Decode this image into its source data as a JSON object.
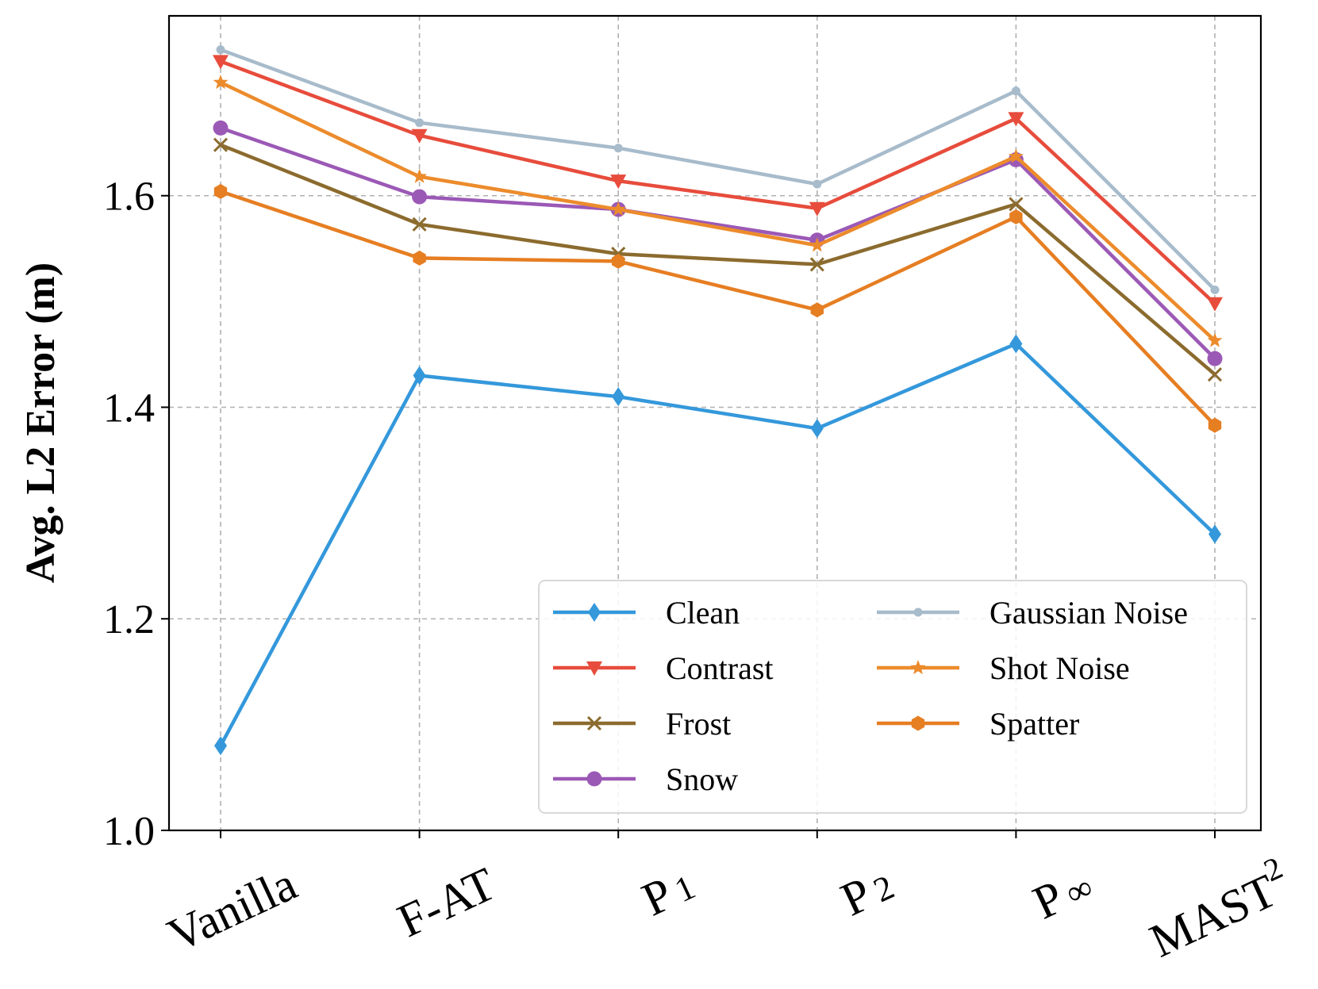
{
  "chart_data": {
    "type": "line",
    "title": "",
    "xlabel": "",
    "ylabel": "Avg. L2 Error (m)",
    "ylim": [
      1.0,
      1.77
    ],
    "yticks": [
      "1.0",
      "1.2",
      "1.4",
      "1.6"
    ],
    "ytick_values": [
      1.0,
      1.2,
      1.4,
      1.6
    ],
    "categories": [
      {
        "base": "Vanilla",
        "sub": "",
        "sup": ""
      },
      {
        "base": "F-AT",
        "sub": "",
        "sup": ""
      },
      {
        "base": "P",
        "sub": "1",
        "sup": ""
      },
      {
        "base": "P",
        "sub": "2",
        "sup": ""
      },
      {
        "base": "P",
        "sub": "∞",
        "sup": ""
      },
      {
        "base": "MAST",
        "sub": "",
        "sup": "2"
      }
    ],
    "grid": true,
    "legend_position": "lower-right",
    "series": [
      {
        "name": "Clean",
        "color": "#3498db",
        "marker": "diamond",
        "values": [
          1.08,
          1.43,
          1.41,
          1.38,
          1.46,
          1.28
        ]
      },
      {
        "name": "Contrast",
        "color": "#e74c3c",
        "marker": "triangle-down",
        "values": [
          1.727,
          1.657,
          1.614,
          1.588,
          1.673,
          1.498
        ]
      },
      {
        "name": "Frost",
        "color": "#8b6b2e",
        "marker": "x",
        "values": [
          1.648,
          1.573,
          1.545,
          1.535,
          1.592,
          1.431
        ]
      },
      {
        "name": "Snow",
        "color": "#9b59b6",
        "marker": "circle",
        "values": [
          1.664,
          1.599,
          1.587,
          1.558,
          1.634,
          1.446
        ]
      },
      {
        "name": "Gaussian Noise",
        "color": "#a7bbcb",
        "marker": "dot",
        "values": [
          1.738,
          1.669,
          1.645,
          1.611,
          1.699,
          1.511
        ]
      },
      {
        "name": "Shot Noise",
        "color": "#ec8b2c",
        "marker": "star",
        "values": [
          1.707,
          1.618,
          1.587,
          1.553,
          1.637,
          1.463
        ]
      },
      {
        "name": "Spatter",
        "color": "#e67e22",
        "marker": "hexagon",
        "values": [
          1.604,
          1.541,
          1.538,
          1.492,
          1.58,
          1.383
        ]
      }
    ]
  }
}
